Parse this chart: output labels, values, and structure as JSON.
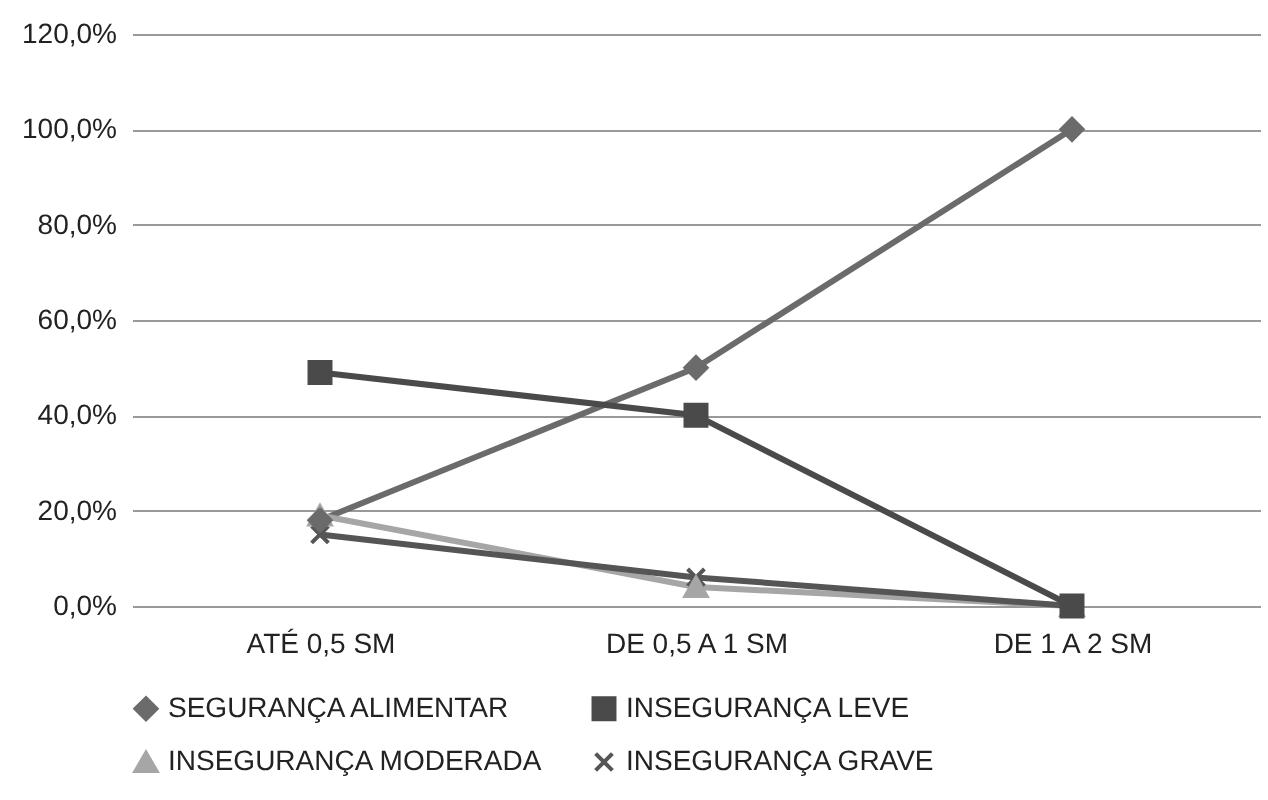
{
  "chart_data": {
    "type": "line",
    "categories": [
      "ATÉ 0,5 SM",
      "DE 0,5 A 1 SM",
      "DE 1 A 2 SM"
    ],
    "series": [
      {
        "name": "SEGURANÇA ALIMENTAR",
        "color": "#6b6b6b",
        "marker": "diamond",
        "values": [
          18,
          50,
          100
        ]
      },
      {
        "name": "INSEGURANÇA LEVE",
        "color": "#4a4a4a",
        "marker": "square",
        "values": [
          49,
          40,
          0
        ]
      },
      {
        "name": "INSEGURANÇA MODERADA",
        "color": "#a6a6a6",
        "marker": "triangle",
        "values": [
          19,
          4,
          0
        ]
      },
      {
        "name": "INSEGURANÇA GRAVE",
        "color": "#555555",
        "marker": "cross",
        "values": [
          15,
          6,
          0
        ]
      }
    ],
    "ylim": [
      0,
      120
    ],
    "yticks": [
      {
        "value": 0,
        "label": "0,0%"
      },
      {
        "value": 20,
        "label": "20,0%"
      },
      {
        "value": 40,
        "label": "40,0%"
      },
      {
        "value": 60,
        "label": "60,0%"
      },
      {
        "value": 80,
        "label": "80,0%"
      },
      {
        "value": 100,
        "label": "100,0%"
      },
      {
        "value": 120,
        "label": "120,0%"
      }
    ],
    "grid": "y",
    "legend": "bottom",
    "line_style": "solid"
  }
}
